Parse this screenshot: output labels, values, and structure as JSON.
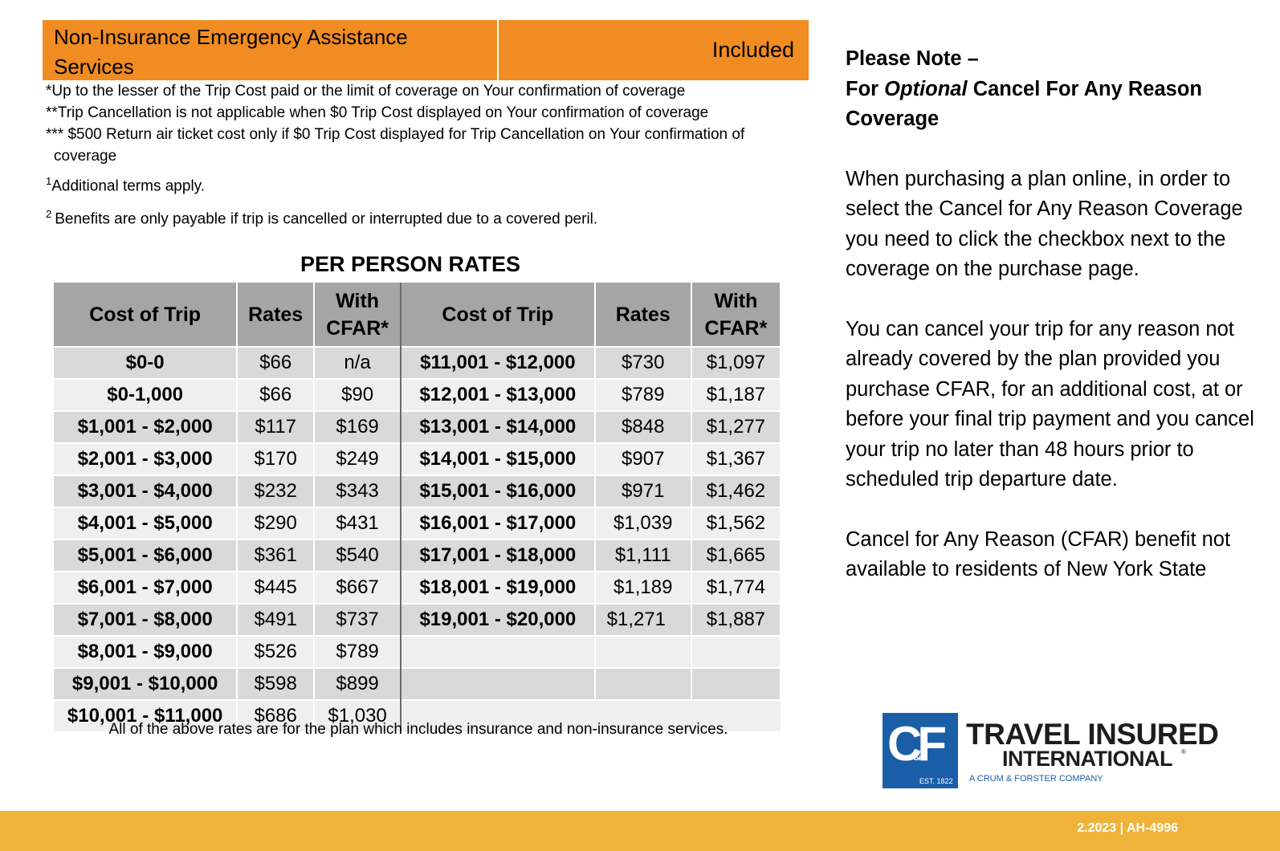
{
  "assistance": {
    "label_line1": "Non-Insurance Emergency Assistance",
    "label_line2": "Services",
    "value": "Included"
  },
  "footnotes": {
    "n1": "*Up to the lesser of the Trip Cost paid or the limit of coverage on Your confirmation of coverage",
    "n2": "**Trip Cancellation is not applicable when $0 Trip Cost displayed on Your confirmation of coverage",
    "n3_line1": "*** $500 Return air ticket cost only if $0 Trip Cost displayed for Trip Cancellation on Your confirmation of",
    "n3_line2": "coverage",
    "sup1": "1",
    "n4": "Additional terms apply.",
    "sup2": "2",
    "n5": "Benefits are only payable if trip is cancelled or interrupted due to a covered peril."
  },
  "rates": {
    "title": "PER PERSON RATES",
    "headers": {
      "cost": "Cost of Trip",
      "rates": "Rates",
      "cfar_line1": "With",
      "cfar_line2": "CFAR*"
    },
    "rows": [
      {
        "cost1": "$0-0",
        "rate1": "$66",
        "cfar1": "n/a",
        "cost2": "$11,001 - $12,000",
        "rate2": "$730",
        "cfar2": "$1,097"
      },
      {
        "cost1": "$0-1,000",
        "rate1": "$66",
        "cfar1": "$90",
        "cost2": "$12,001 - $13,000",
        "rate2": "$789",
        "cfar2": "$1,187"
      },
      {
        "cost1": "$1,001 - $2,000",
        "rate1": "$117",
        "cfar1": "$169",
        "cost2": "$13,001 - $14,000",
        "rate2": "$848",
        "cfar2": "$1,277"
      },
      {
        "cost1": "$2,001 - $3,000",
        "rate1": "$170",
        "cfar1": "$249",
        "cost2": "$14,001 - $15,000",
        "rate2": "$907",
        "cfar2": "$1,367"
      },
      {
        "cost1": "$3,001 - $4,000",
        "rate1": "$232",
        "cfar1": "$343",
        "cost2": "$15,001 - $16,000",
        "rate2": "$971",
        "cfar2": "$1,462"
      },
      {
        "cost1": "$4,001 - $5,000",
        "rate1": "$290",
        "cfar1": "$431",
        "cost2": "$16,001 - $17,000",
        "rate2": "$1,039",
        "cfar2": "$1,562"
      },
      {
        "cost1": "$5,001 - $6,000",
        "rate1": "$361",
        "cfar1": "$540",
        "cost2": "$17,001 - $18,000",
        "rate2": "$1,111",
        "cfar2": "$1,665"
      },
      {
        "cost1": "$6,001 - $7,000",
        "rate1": "$445",
        "cfar1": "$667",
        "cost2": "$18,001 - $19,000",
        "rate2": "$1,189",
        "cfar2": "$1,774"
      },
      {
        "cost1": "$7,001 - $8,000",
        "rate1": "$491",
        "cfar1": "$737",
        "cost2": "$19,001 - $20,000",
        "rate2": "$1,271",
        "cfar2": "$1,887"
      },
      {
        "cost1": "$8,001 - $9,000",
        "rate1": "$526",
        "cfar1": "$789",
        "cost2": "",
        "rate2": "",
        "cfar2": ""
      },
      {
        "cost1": "$9,001 - $10,000",
        "rate1": "$598",
        "cfar1": "$899",
        "cost2": "",
        "rate2": "",
        "cfar2": ""
      },
      {
        "cost1": "$10,001 - $11,000",
        "rate1": "$686",
        "cfar1": "$1,030",
        "cost2": "",
        "rate2": "",
        "cfar2": ""
      }
    ],
    "caption": "All of the above rates are for the plan which includes insurance and non-insurance services."
  },
  "note": {
    "heading_line1": "Please Note –",
    "heading_for": "For",
    "heading_optional": "Optional",
    "heading_rest": "Cancel For Any Reason",
    "heading_line3": "Coverage",
    "para1": "When purchasing a plan online, in order to select the Cancel for Any Reason Coverage you need to click the checkbox next to the coverage on the purchase page.",
    "para2": "You can cancel your trip for any reason not already covered by the plan provided you purchase CFAR, for an additional cost, at or before your final trip payment and you cancel your trip no later than 48 hours prior to scheduled trip departure date.",
    "para3": "Cancel for Any Reason (CFAR) benefit not available to residents of New York State"
  },
  "logo": {
    "mark": "CF",
    "amp": "&",
    "est": "EST. 1822",
    "name_line1": "TRAVEL INSURED",
    "name_line2": "INTERNATIONAL",
    "tm": "®",
    "sub": "A CRUM & FORSTER COMPANY"
  },
  "footer": {
    "code": "2.2023 | AH-4996"
  },
  "colors": {
    "orange_bar": "#f08c21",
    "footer_bar": "#f0b33a",
    "header_gray": "#a5a5a5",
    "row_dark": "#d9d9d9",
    "row_light": "#efefef",
    "brand_blue": "#1b5ea8"
  }
}
